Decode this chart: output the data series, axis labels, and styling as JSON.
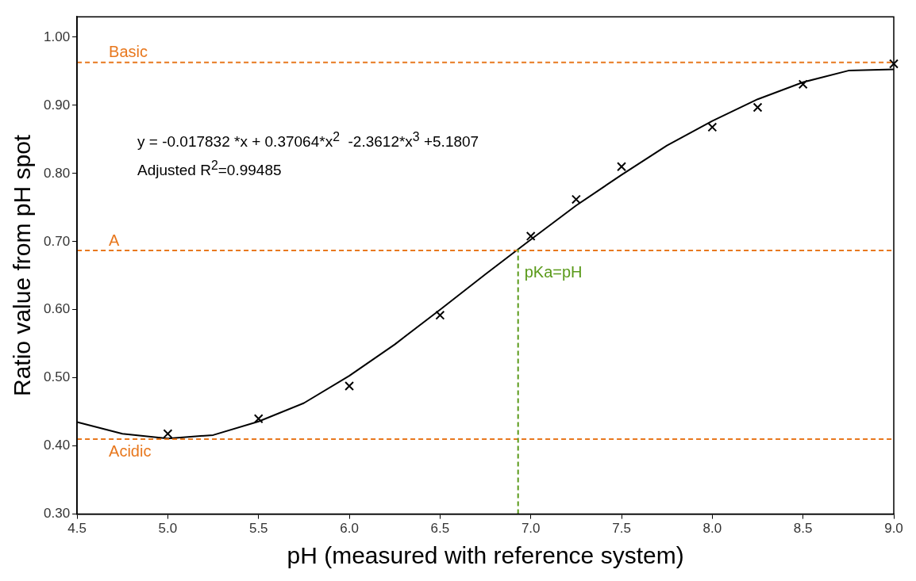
{
  "chart_data": {
    "type": "scatter",
    "xlabel": "pH (measured with reference system)",
    "ylabel": "Ratio value from pH spot",
    "xlim": [
      4.5,
      9.0
    ],
    "ylim": [
      0.3,
      1.03
    ],
    "xticks": [
      4.5,
      {
        "value": 5,
        "label": "5.0"
      },
      5.5,
      {
        "value": 6,
        "label": "6.0"
      },
      6.5,
      {
        "value": 7,
        "label": "7.0"
      },
      7.5,
      {
        "value": 8,
        "label": "8.0"
      },
      8.5,
      {
        "value": 9,
        "label": "9.0"
      }
    ],
    "yticks": [
      {
        "value": 0.3,
        "label": "0.30"
      },
      {
        "value": 0.4,
        "label": "0.40"
      },
      {
        "value": 0.5,
        "label": "0.50"
      },
      {
        "value": 0.6,
        "label": "0.60"
      },
      {
        "value": 0.7,
        "label": "0.70"
      },
      {
        "value": 0.8,
        "label": "0.80"
      },
      {
        "value": 0.9,
        "label": "0.90"
      },
      {
        "value": 1,
        "label": "1.00"
      }
    ],
    "series": [
      {
        "color": "#000000",
        "marker": "cross",
        "x": [
          5.0,
          5.5,
          6.0,
          6.5,
          7.0,
          7.25,
          7.5,
          8.0,
          8.25,
          8.5,
          9.0
        ],
        "values": [
          0.418,
          0.44,
          0.488,
          0.592,
          0.708,
          0.762,
          0.81,
          0.868,
          0.897,
          0.931,
          0.961
        ]
      },
      {
        "type": "line",
        "color": "#000000",
        "marker": "none",
        "x": [
          4.5,
          4.75,
          5.0,
          5.25,
          5.5,
          5.75,
          6.0,
          6.25,
          6.5,
          6.75,
          7.0,
          7.25,
          7.5,
          7.75,
          8.0,
          8.25,
          8.5,
          8.75,
          9.0
        ],
        "values": [
          0.435,
          0.418,
          0.411,
          0.416,
          0.436,
          0.463,
          0.503,
          0.549,
          0.6,
          0.652,
          0.703,
          0.753,
          0.798,
          0.841,
          0.877,
          0.909,
          0.934,
          0.951,
          0.953
        ]
      }
    ],
    "ref_lines": [
      {
        "axis": "y",
        "value": 0.963,
        "label": "Basic",
        "color": "#e8781e",
        "line_style": "dashed"
      },
      {
        "axis": "y",
        "value": 0.687,
        "label": "A",
        "color": "#e8781e",
        "line_style": "dashed"
      },
      {
        "axis": "y",
        "value": 0.41,
        "label": "Acidic",
        "color": "#e8781e",
        "line_style": "dashed"
      },
      {
        "axis": "x",
        "value": 6.93,
        "label": "pKa=pH",
        "color": "#5a9a1a",
        "line_style": "dashed"
      }
    ],
    "annotations": [
      "y = -0.017832 *x + 0.37064*x$^{2}$  -2.3612*x$^{3}$ +5.1807",
      "Adjusted R$^{2}$=0.99485"
    ],
    "grid": false,
    "legend": false
  }
}
